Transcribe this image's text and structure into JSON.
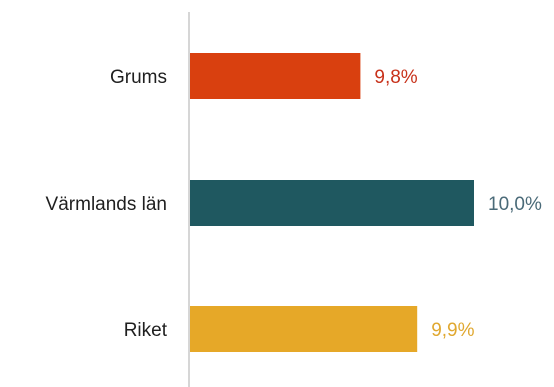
{
  "chart_data": {
    "type": "bar",
    "orientation": "horizontal",
    "title": "",
    "xlabel": "",
    "ylabel": "",
    "categories": [
      "Grums",
      "Värmlands län",
      "Riket"
    ],
    "values": [
      9.8,
      10.0,
      9.9
    ],
    "value_labels": [
      "9,8%",
      "10,0%",
      "9,9%"
    ],
    "colors": [
      "#d9400f",
      "#1f5860",
      "#e6a828"
    ],
    "label_colors": [
      "#c8321b",
      "#4a6a78",
      "#e0a830"
    ],
    "axis_color": "#c8c8c8",
    "xlim": [
      9.5,
      10.0
    ],
    "grid": false,
    "legend": "none"
  }
}
